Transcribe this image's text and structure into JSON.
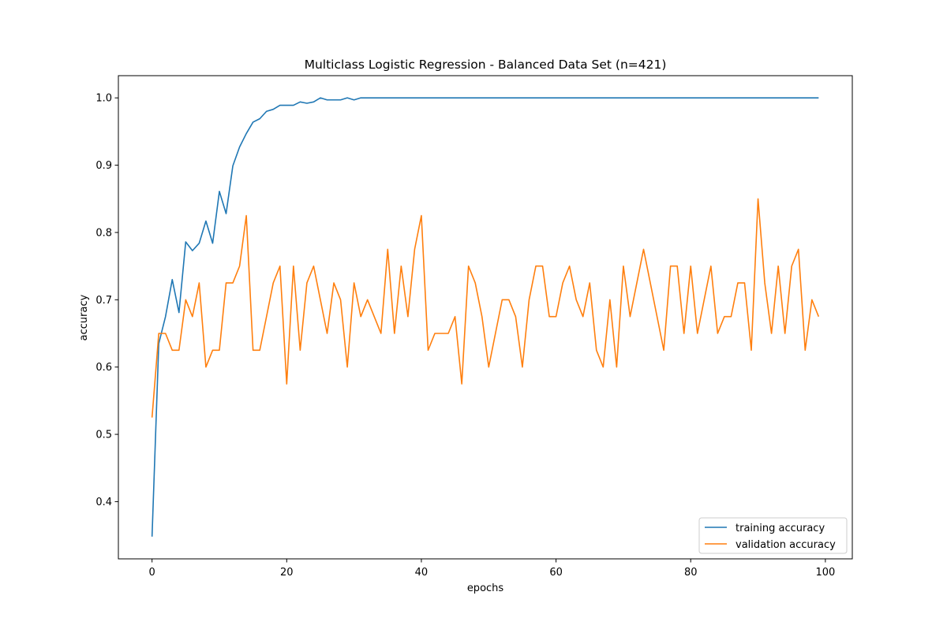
{
  "chart_data": {
    "type": "line",
    "title": "Multiclass Logistic Regression - Balanced Data Set (n=421)",
    "xlabel": "epochs",
    "ylabel": "accuracy",
    "xlim": [
      -5,
      104
    ],
    "ylim": [
      0.315,
      1.033
    ],
    "xticks": [
      0,
      20,
      40,
      60,
      80,
      100
    ],
    "yticks": [
      0.4,
      0.5,
      0.6,
      0.7,
      0.8,
      0.9,
      1.0
    ],
    "ytick_labels": [
      "0.4",
      "0.5",
      "0.6",
      "0.7",
      "0.8",
      "0.9",
      "1.0"
    ],
    "grid": false,
    "legend_position": "lower-right",
    "series": [
      {
        "name": "training accuracy",
        "color": "#1f77b4",
        "x": [
          0,
          1,
          2,
          3,
          4,
          5,
          6,
          7,
          8,
          9,
          10,
          11,
          12,
          13,
          14,
          15,
          16,
          17,
          18,
          19,
          20,
          21,
          22,
          23,
          24,
          25,
          26,
          27,
          28,
          29,
          30,
          31,
          32,
          33,
          34,
          35,
          36,
          37,
          38,
          39,
          40,
          41,
          42,
          43,
          44,
          45,
          46,
          47,
          48,
          49,
          50,
          51,
          52,
          53,
          54,
          55,
          56,
          57,
          58,
          59,
          60,
          61,
          62,
          63,
          64,
          65,
          66,
          67,
          68,
          69,
          70,
          71,
          72,
          73,
          74,
          75,
          76,
          77,
          78,
          79,
          80,
          81,
          82,
          83,
          84,
          85,
          86,
          87,
          88,
          89,
          90,
          91,
          92,
          93,
          94,
          95,
          96,
          97,
          98,
          99
        ],
        "y": [
          0.348,
          0.635,
          0.675,
          0.73,
          0.681,
          0.786,
          0.773,
          0.784,
          0.817,
          0.784,
          0.861,
          0.828,
          0.899,
          0.927,
          0.947,
          0.964,
          0.969,
          0.98,
          0.983,
          0.989,
          0.989,
          0.989,
          0.994,
          0.992,
          0.994,
          1.0,
          0.997,
          0.997,
          0.997,
          1.0,
          0.997,
          1.0,
          1.0,
          1.0,
          1.0,
          1.0,
          1.0,
          1.0,
          1.0,
          1.0,
          1.0,
          1.0,
          1.0,
          1.0,
          1.0,
          1.0,
          1.0,
          1.0,
          1.0,
          1.0,
          1.0,
          1.0,
          1.0,
          1.0,
          1.0,
          1.0,
          1.0,
          1.0,
          1.0,
          1.0,
          1.0,
          1.0,
          1.0,
          1.0,
          1.0,
          1.0,
          1.0,
          1.0,
          1.0,
          1.0,
          1.0,
          1.0,
          1.0,
          1.0,
          1.0,
          1.0,
          1.0,
          1.0,
          1.0,
          1.0,
          1.0,
          1.0,
          1.0,
          1.0,
          1.0,
          1.0,
          1.0,
          1.0,
          1.0,
          1.0,
          1.0,
          1.0,
          1.0,
          1.0,
          1.0,
          1.0,
          1.0,
          1.0,
          1.0,
          1.0
        ]
      },
      {
        "name": "validation accuracy",
        "color": "#ff7f0e",
        "x": [
          0,
          1,
          2,
          3,
          4,
          5,
          6,
          7,
          8,
          9,
          10,
          11,
          12,
          13,
          14,
          15,
          16,
          17,
          18,
          19,
          20,
          21,
          22,
          23,
          24,
          25,
          26,
          27,
          28,
          29,
          30,
          31,
          32,
          33,
          34,
          35,
          36,
          37,
          38,
          39,
          40,
          41,
          42,
          43,
          44,
          45,
          46,
          47,
          48,
          49,
          50,
          51,
          52,
          53,
          54,
          55,
          56,
          57,
          58,
          59,
          60,
          61,
          62,
          63,
          64,
          65,
          66,
          67,
          68,
          69,
          70,
          71,
          72,
          73,
          74,
          75,
          76,
          77,
          78,
          79,
          80,
          81,
          82,
          83,
          84,
          85,
          86,
          87,
          88,
          89,
          90,
          91,
          92,
          93,
          94,
          95,
          96,
          97,
          98,
          99
        ],
        "y": [
          0.525,
          0.65,
          0.65,
          0.625,
          0.625,
          0.7,
          0.675,
          0.725,
          0.6,
          0.625,
          0.625,
          0.725,
          0.725,
          0.75,
          0.825,
          0.625,
          0.625,
          0.675,
          0.725,
          0.75,
          0.575,
          0.75,
          0.625,
          0.725,
          0.75,
          0.7,
          0.65,
          0.725,
          0.7,
          0.6,
          0.725,
          0.675,
          0.7,
          0.675,
          0.65,
          0.775,
          0.65,
          0.75,
          0.675,
          0.775,
          0.825,
          0.625,
          0.65,
          0.65,
          0.65,
          0.675,
          0.575,
          0.75,
          0.725,
          0.675,
          0.6,
          0.65,
          0.7,
          0.7,
          0.675,
          0.6,
          0.7,
          0.75,
          0.75,
          0.675,
          0.675,
          0.725,
          0.75,
          0.7,
          0.675,
          0.725,
          0.625,
          0.6,
          0.7,
          0.6,
          0.75,
          0.675,
          0.725,
          0.775,
          0.725,
          0.675,
          0.625,
          0.75,
          0.75,
          0.65,
          0.75,
          0.65,
          0.7,
          0.75,
          0.65,
          0.675,
          0.675,
          0.725,
          0.725,
          0.625,
          0.85,
          0.725,
          0.65,
          0.75,
          0.65,
          0.75,
          0.775,
          0.625,
          0.7,
          0.675
        ]
      }
    ]
  }
}
